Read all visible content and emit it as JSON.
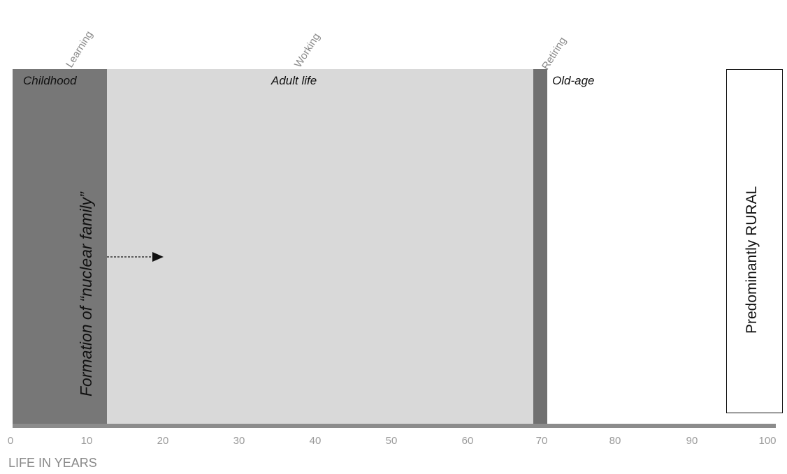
{
  "phases": {
    "learning": "Learning",
    "working": "Working",
    "retiring": "Retiring"
  },
  "stages": {
    "childhood": "Childhood",
    "adult_life": "Adult life",
    "old_age": "Old-age"
  },
  "annotations": {
    "nuclear_family": "Formation of “nuclear family”",
    "rural": "Predominantly RURAL"
  },
  "axis": {
    "title": "LIFE IN YEARS",
    "range": [
      0,
      100
    ],
    "ticks": [
      "0",
      "10",
      "20",
      "30",
      "40",
      "50",
      "60",
      "70",
      "80",
      "90",
      "100"
    ]
  },
  "colors": {
    "childhood": "#777777",
    "adult_life": "#d9d9d9",
    "retiring": "#707070",
    "axis": "#8c8c8c"
  }
}
